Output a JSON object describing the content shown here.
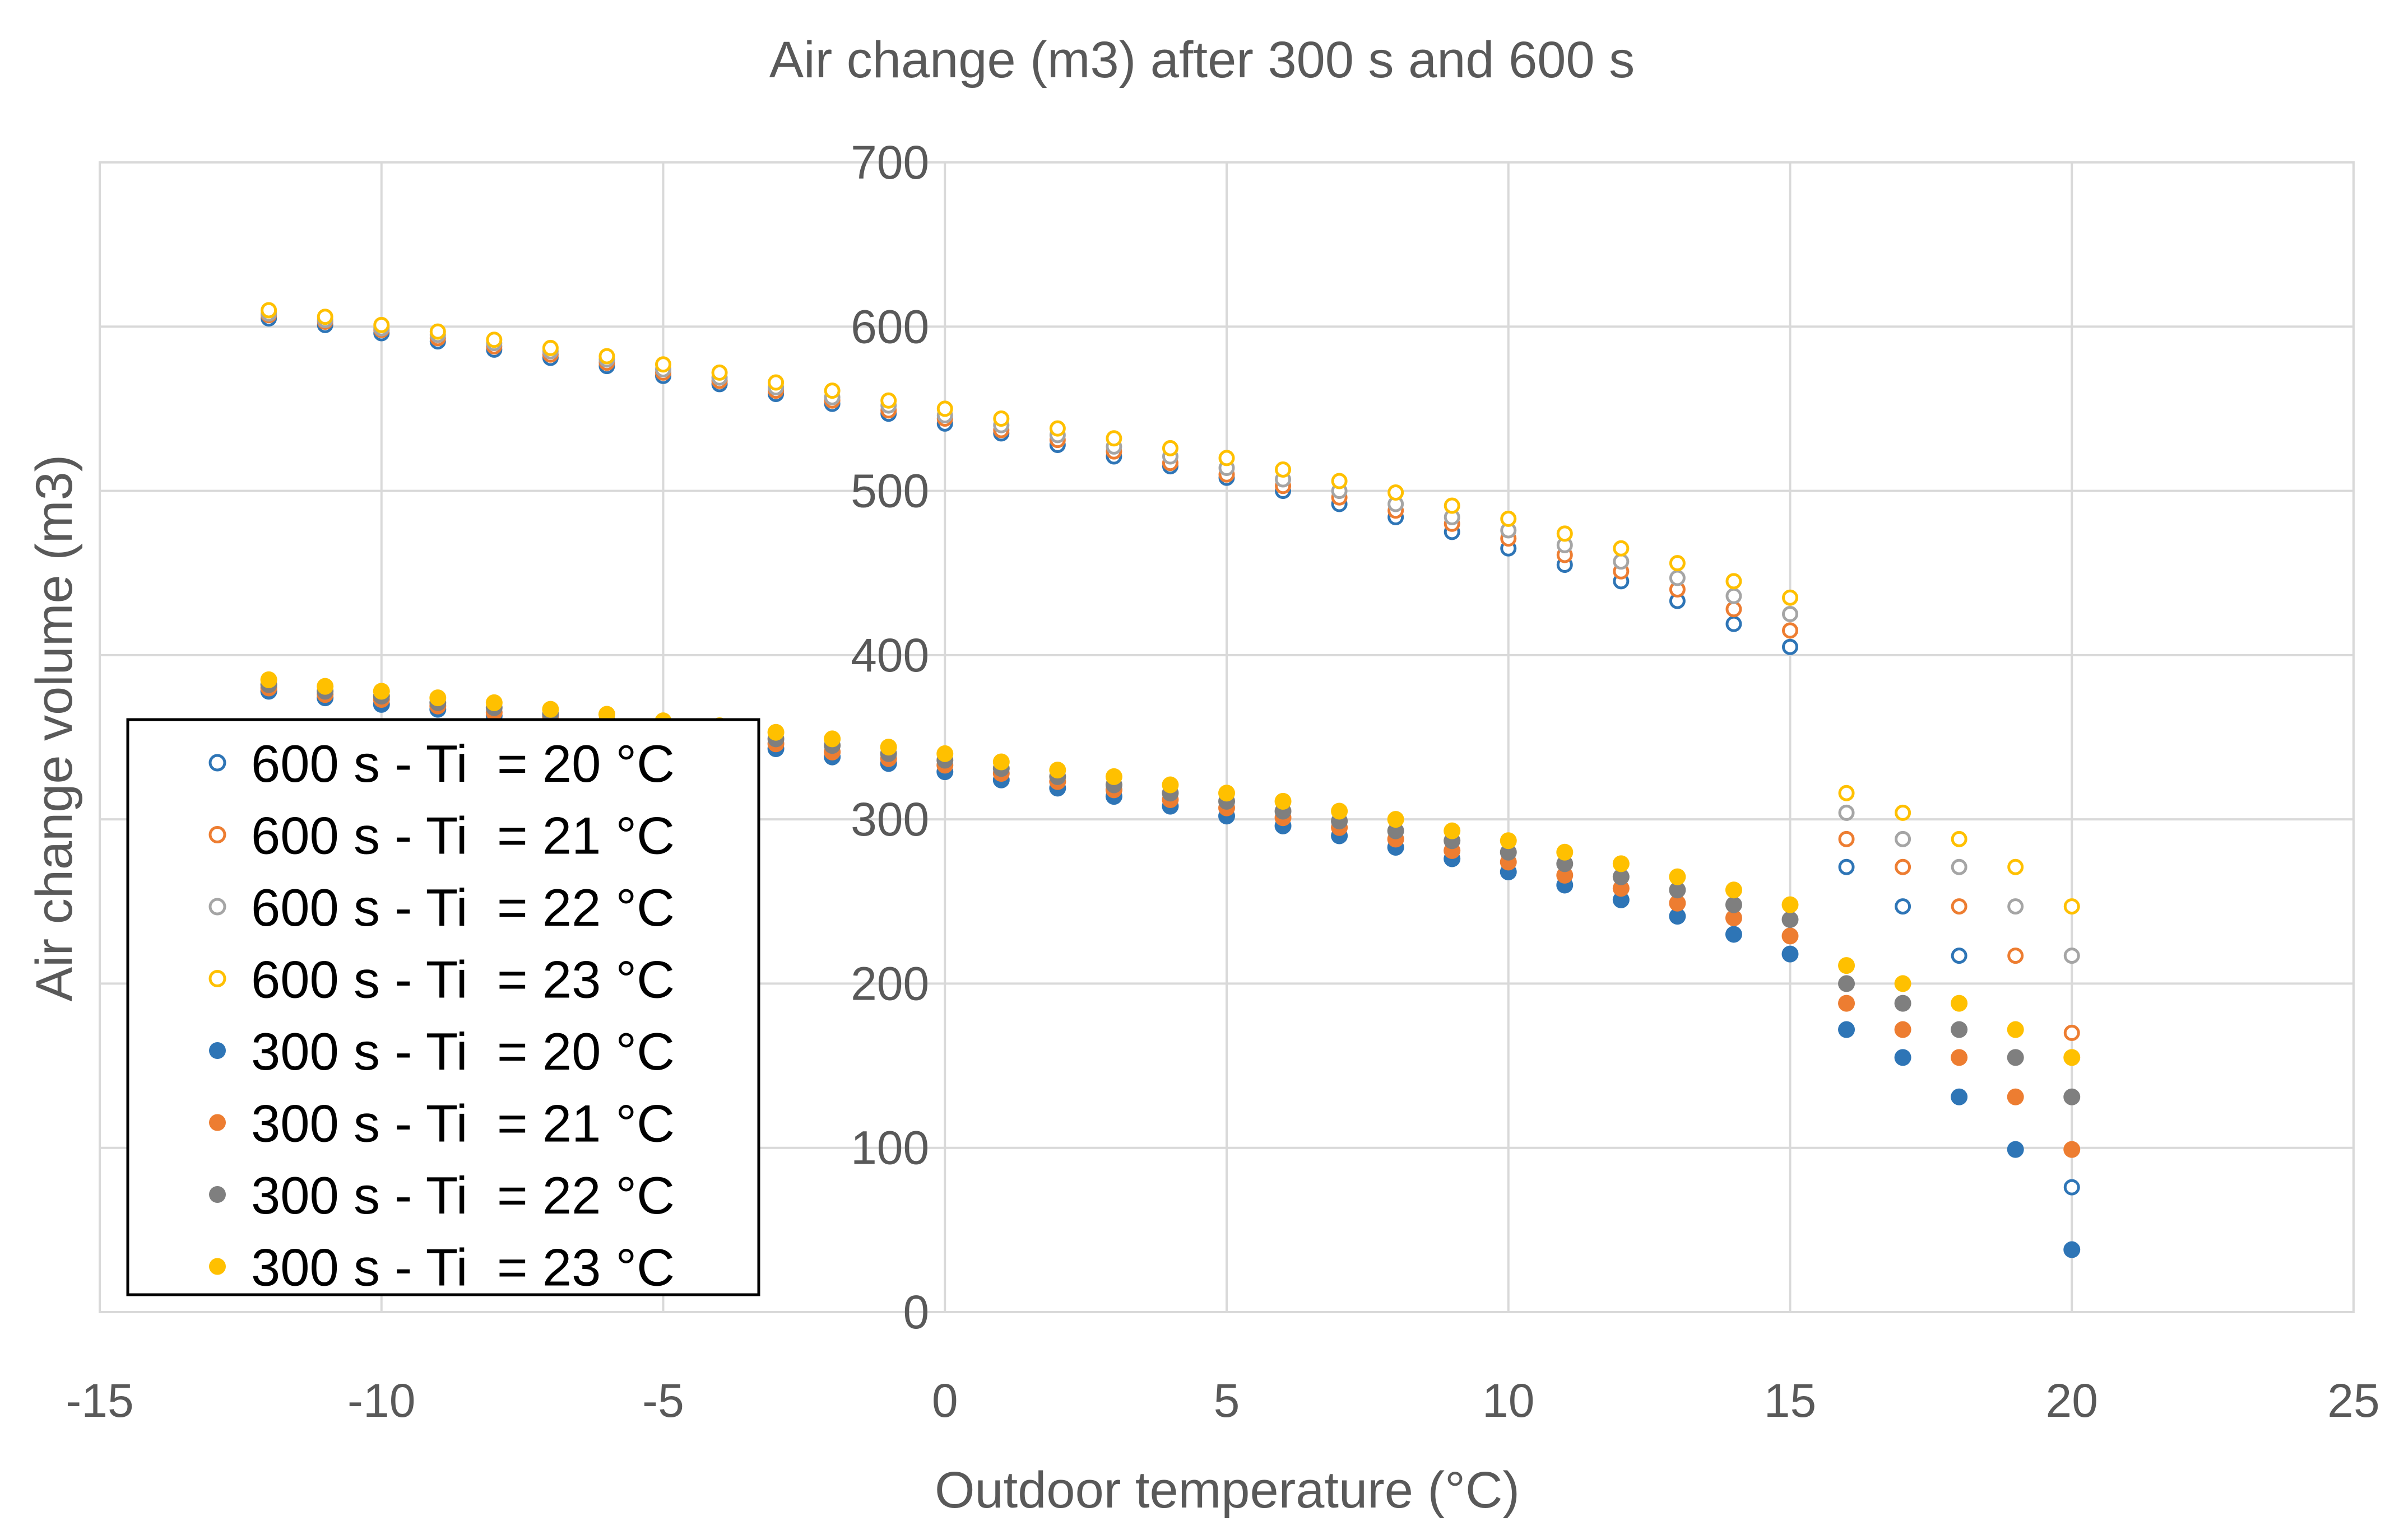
{
  "chart_data": {
    "type": "scatter",
    "title": "Air change (m3) after 300 s and 600 s",
    "xlabel": "Outdoor temperature (°C)",
    "ylabel": "Air change volume (m3)",
    "xlim": [
      -15,
      25
    ],
    "ylim": [
      0,
      700
    ],
    "xticks": [
      -15,
      -10,
      -5,
      0,
      5,
      10,
      15,
      20,
      25
    ],
    "yticks": [
      0,
      100,
      200,
      300,
      400,
      500,
      600,
      700
    ],
    "xtick_labels": [
      "-15",
      "-10",
      "-5",
      "0",
      "5",
      "10",
      "15",
      "20",
      "25"
    ],
    "ytick_labels": [
      "0",
      "100",
      "200",
      "300",
      "400",
      "500",
      "600",
      "700"
    ],
    "grid": true,
    "legend_position": "bottom-left",
    "x": [
      -12,
      -11,
      -10,
      -9,
      -8,
      -7,
      -6,
      -5,
      -4,
      -3,
      -2,
      -1,
      0,
      1,
      2,
      3,
      4,
      5,
      6,
      7,
      8,
      9,
      10,
      11,
      12,
      13,
      14,
      15,
      16,
      17,
      18,
      19,
      20
    ],
    "series": [
      {
        "name": "600 s - Ti  = 20 °C",
        "marker": "open",
        "color": "#2E75B6",
        "values": [
          605,
          601,
          596,
          591,
          586,
          581,
          576,
          570,
          565,
          559,
          553,
          547,
          541,
          535,
          528,
          521,
          515,
          508,
          500,
          492,
          484,
          475,
          465,
          455,
          445,
          433,
          419,
          405,
          271,
          247,
          217,
          172,
          76
        ]
      },
      {
        "name": "600 s - Ti  = 21 °C",
        "marker": "open",
        "color": "#ED7D31",
        "values": [
          607,
          603,
          598,
          593,
          588,
          583,
          578,
          572,
          567,
          561,
          555,
          549,
          544,
          537,
          531,
          524,
          517,
          510,
          503,
          496,
          488,
          480,
          471,
          461,
          451,
          440,
          428,
          415,
          288,
          271,
          247,
          217,
          170
        ]
      },
      {
        "name": "600 s - Ti  = 22 °C",
        "marker": "open",
        "color": "#A5A5A5",
        "values": [
          608,
          604,
          599,
          595,
          590,
          585,
          580,
          574,
          569,
          563,
          557,
          552,
          546,
          540,
          534,
          527,
          521,
          514,
          507,
          500,
          492,
          484,
          476,
          467,
          457,
          447,
          436,
          425,
          304,
          288,
          271,
          247,
          217
        ]
      },
      {
        "name": "600 s - Ti  = 23 °C",
        "marker": "open",
        "color": "#FFC000",
        "values": [
          610,
          606,
          601,
          597,
          592,
          587,
          582,
          577,
          572,
          566,
          561,
          555,
          550,
          544,
          538,
          532,
          526,
          520,
          513,
          506,
          499,
          491,
          483,
          474,
          465,
          456,
          445,
          435,
          316,
          304,
          288,
          271,
          247
        ]
      },
      {
        "name": "300 s - Ti  = 20 °C",
        "marker": "filled",
        "color": "#2E75B6",
        "values": [
          378,
          374,
          370,
          367,
          363,
          359,
          355,
          351,
          347,
          343,
          338,
          334,
          329,
          324,
          319,
          314,
          308,
          302,
          296,
          290,
          283,
          276,
          268,
          260,
          251,
          241,
          230,
          218,
          172,
          155,
          131,
          99,
          38
        ]
      },
      {
        "name": "300 s - Ti  = 21 °C",
        "marker": "filled",
        "color": "#ED7D31",
        "values": [
          380,
          376,
          373,
          369,
          365,
          362,
          358,
          354,
          350,
          346,
          341,
          337,
          333,
          328,
          323,
          318,
          312,
          307,
          301,
          295,
          288,
          281,
          274,
          266,
          258,
          249,
          240,
          229,
          188,
          172,
          155,
          131,
          99
        ]
      },
      {
        "name": "300 s - Ti  = 22 °C",
        "marker": "filled",
        "color": "#7F7F7F",
        "values": [
          382,
          378,
          375,
          371,
          368,
          364,
          360,
          356,
          353,
          349,
          345,
          340,
          336,
          331,
          326,
          321,
          316,
          311,
          305,
          299,
          293,
          287,
          280,
          273,
          265,
          257,
          248,
          239,
          200,
          188,
          172,
          155,
          131
        ]
      },
      {
        "name": "300 s - Ti  = 23 °C",
        "marker": "filled",
        "color": "#FFC000",
        "values": [
          385,
          381,
          378,
          374,
          371,
          367,
          364,
          360,
          357,
          353,
          349,
          344,
          340,
          335,
          330,
          326,
          321,
          316,
          311,
          305,
          300,
          293,
          287,
          280,
          273,
          265,
          257,
          248,
          211,
          200,
          188,
          172,
          155
        ]
      }
    ]
  }
}
